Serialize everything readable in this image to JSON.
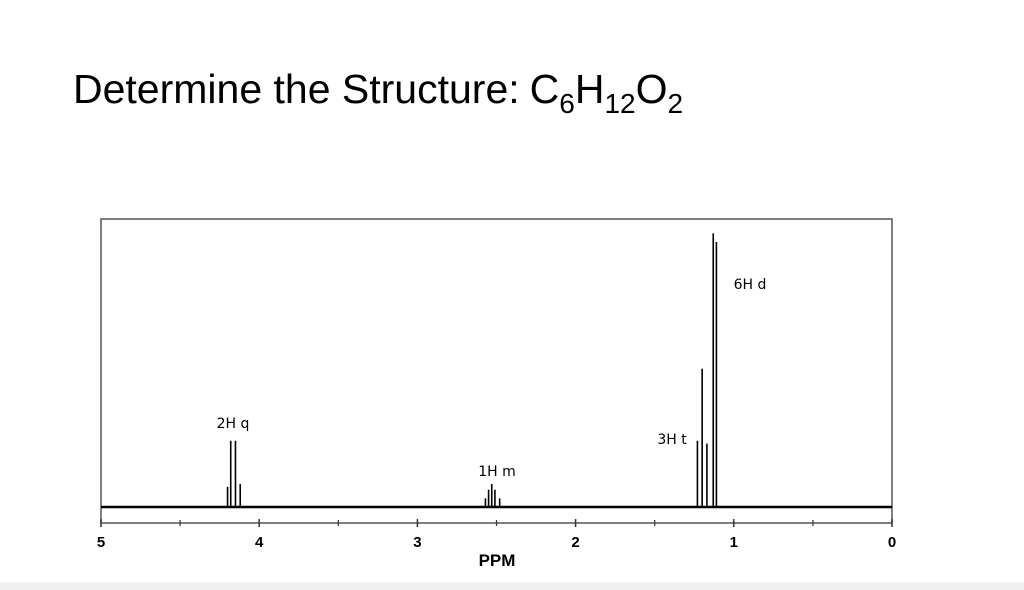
{
  "chart_data": {
    "type": "nmr",
    "title": "Determine the Structure:",
    "formula": [
      [
        "C",
        "6"
      ],
      [
        "H",
        "12"
      ],
      [
        "O",
        "2"
      ]
    ],
    "xlabel": "PPM",
    "xlim": [
      5,
      0
    ],
    "xticks": [
      5,
      4,
      3,
      2,
      1,
      0
    ],
    "xminorticks": [
      4.5,
      3.5,
      2.5,
      1.5,
      0.5
    ],
    "ylim": [
      0,
      100
    ],
    "color": "#000000",
    "peaks": [
      {
        "label": "2H q",
        "x": [
          4.2,
          4.18,
          4.15,
          4.12
        ],
        "heights": [
          7,
          23,
          23,
          8
        ]
      },
      {
        "label": "1H m",
        "x": [
          2.57,
          2.55,
          2.53,
          2.51,
          2.48
        ],
        "heights": [
          3,
          6,
          8,
          6,
          3
        ]
      },
      {
        "label": "3H t",
        "x": [
          1.23,
          1.2,
          1.17
        ],
        "heights": [
          23,
          48,
          22
        ]
      },
      {
        "label": "6H d",
        "x": [
          1.13,
          1.11
        ],
        "heights": [
          95,
          92
        ]
      }
    ]
  }
}
